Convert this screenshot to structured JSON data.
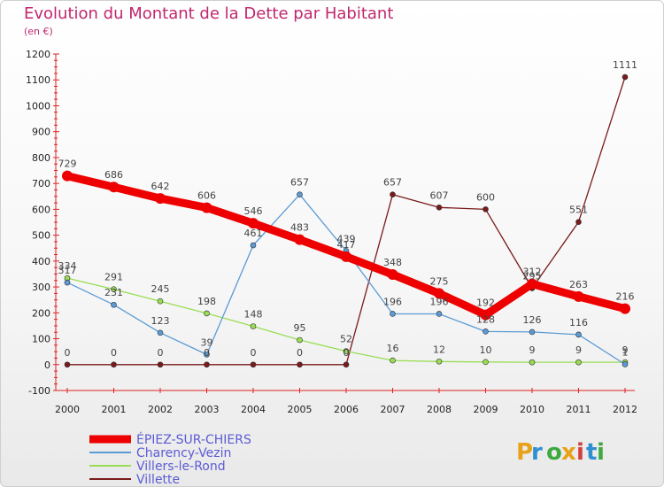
{
  "chart_data": {
    "type": "line",
    "title": "Evolution du Montant de la Dette par Habitant",
    "subtitle": "(en €)",
    "x": [
      "2000",
      "2001",
      "2002",
      "2003",
      "2004",
      "2005",
      "2006",
      "2007",
      "2008",
      "2009",
      "2010",
      "2011",
      "2012"
    ],
    "ylim": [
      -100,
      1200
    ],
    "yticks": [
      -100,
      0,
      100,
      200,
      300,
      400,
      500,
      600,
      700,
      800,
      900,
      1000,
      1100,
      1200
    ],
    "grid": false,
    "legend_position": "bottom-left",
    "series": [
      {
        "name": "ÉPIEZ-SUR-CHIERS",
        "color": "#ee0000",
        "values": [
          729,
          686,
          642,
          606,
          546,
          483,
          417,
          348,
          275,
          192,
          312,
          263,
          216
        ]
      },
      {
        "name": "Charency-Vezin",
        "color": "#5b9bd5",
        "values": [
          317,
          231,
          123,
          39,
          461,
          657,
          439,
          196,
          196,
          128,
          126,
          116,
          1
        ]
      },
      {
        "name": "Villers-le-Rond",
        "color": "#99dd55",
        "values": [
          334,
          291,
          245,
          198,
          148,
          95,
          52,
          16,
          12,
          10,
          9,
          9,
          9
        ]
      },
      {
        "name": "Villette",
        "color": "#7a1a1a",
        "values": [
          0,
          0,
          0,
          0,
          0,
          0,
          0,
          657,
          607,
          600,
          295,
          551,
          1111
        ]
      }
    ]
  },
  "brand": {
    "letters": [
      "P",
      "r",
      "o",
      "x",
      "i",
      "t",
      "i"
    ],
    "colors": [
      "#e8a21a",
      "#2f8fd0",
      "#3fa93f",
      "#e8a21a",
      "#d04040",
      "#2f8fd0",
      "#3fa93f"
    ]
  }
}
